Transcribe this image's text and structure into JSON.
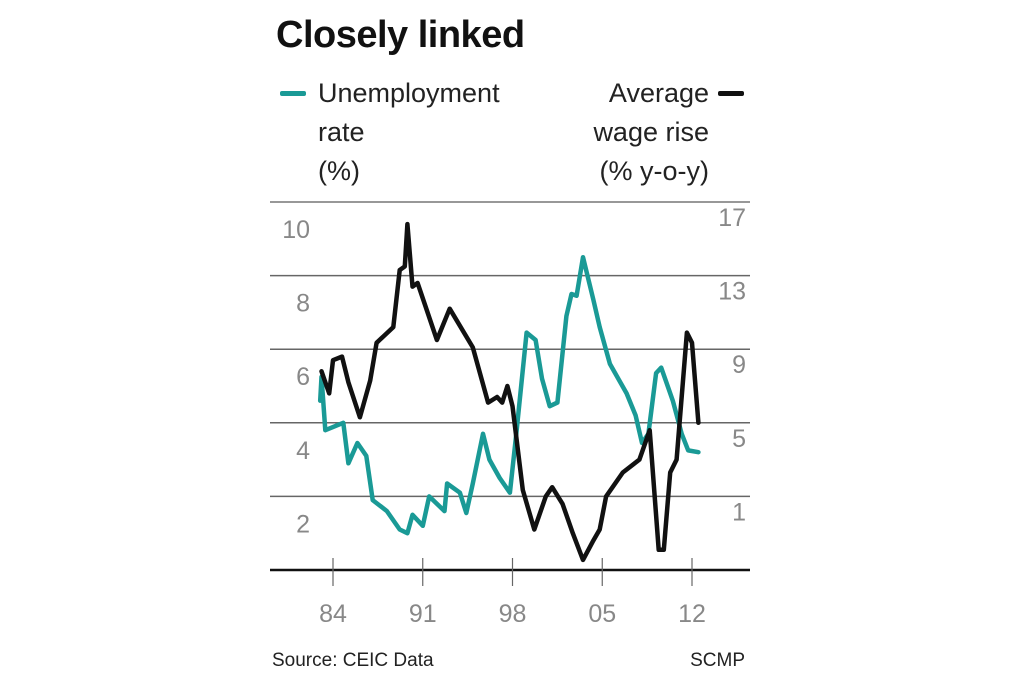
{
  "chart_data": {
    "type": "line",
    "title": "Closely linked",
    "source": "Source: CEIC Data",
    "credit": "SCMP",
    "x_tick_labels": [
      "84",
      "91",
      "98",
      "05",
      "12"
    ],
    "x_ticks": [
      1984,
      1991,
      1998,
      2005,
      2012
    ],
    "xlim": [
      1982.3,
      2015.5
    ],
    "grid": true,
    "y_left": {
      "tick_labels": [
        "10",
        "8",
        "6",
        "4",
        "2"
      ],
      "ticks": [
        10,
        8,
        6,
        4,
        2
      ],
      "ylim": [
        0,
        10
      ]
    },
    "y_right": {
      "tick_labels": [
        "17",
        "13",
        "9",
        "5",
        "1"
      ],
      "ticks": [
        17,
        13,
        9,
        5,
        1
      ],
      "ylim": [
        -3,
        17
      ]
    },
    "series": [
      {
        "name": "Unemployment rate (%)",
        "legend_lines": [
          "Unemployment",
          "rate",
          "(%)"
        ],
        "axis": "left",
        "color": "#1a9a96",
        "x": [
          1983.0,
          1983.1,
          1983.4,
          1984.8,
          1985.2,
          1985.9,
          1986.6,
          1987.1,
          1988.2,
          1989.2,
          1989.8,
          1990.2,
          1991.0,
          1991.5,
          1992.7,
          1992.9,
          1993.9,
          1994.4,
          1994.9,
          1995.7,
          1996.2,
          1997.0,
          1997.8,
          1998.3,
          1999.1,
          1999.8,
          2000.3,
          2000.9,
          2001.5,
          2002.2,
          2002.6,
          2003.0,
          2003.5,
          2004.3,
          2004.8,
          2005.6,
          2006.9,
          2007.6,
          2008.1,
          2008.6,
          2009.2,
          2009.6,
          2010.5,
          2011.2,
          2011.7,
          2012.5
        ],
        "y": [
          4.6,
          5.25,
          3.8,
          4.0,
          2.9,
          3.45,
          3.1,
          1.9,
          1.6,
          1.1,
          1.0,
          1.5,
          1.2,
          2.0,
          1.6,
          2.35,
          2.1,
          1.55,
          2.35,
          3.7,
          3.0,
          2.5,
          2.1,
          3.7,
          6.45,
          6.25,
          5.2,
          4.45,
          4.55,
          6.9,
          7.5,
          7.45,
          8.5,
          7.35,
          6.6,
          5.6,
          4.8,
          4.2,
          3.45,
          3.7,
          5.35,
          5.5,
          4.6,
          3.7,
          3.25,
          3.2
        ]
      },
      {
        "name": "Average wage rise (% y-o-y)",
        "legend_lines": [
          "Average",
          "wage rise",
          "(% y-o-y)"
        ],
        "axis": "right",
        "color": "#111111",
        "x": [
          1983.1,
          1983.7,
          1984.0,
          1984.7,
          1985.2,
          1986.1,
          1986.9,
          1987.4,
          1988.7,
          1989.2,
          1989.6,
          1989.8,
          1990.2,
          1990.6,
          1992.1,
          1993.1,
          1994.9,
          1996.1,
          1996.8,
          1997.2,
          1997.6,
          1998.0,
          1998.8,
          1999.7,
          2000.6,
          2001.1,
          2001.9,
          2002.7,
          2003.5,
          2004.3,
          2004.8,
          2005.3,
          2006.6,
          2007.9,
          2008.7,
          2009.4,
          2009.8,
          2010.3,
          2010.8,
          2011.6,
          2012.0,
          2012.5
        ],
        "y": [
          7.8,
          6.6,
          8.4,
          8.6,
          7.2,
          5.3,
          7.3,
          9.35,
          10.2,
          13.3,
          13.5,
          15.8,
          12.4,
          12.6,
          9.5,
          11.2,
          9.1,
          6.1,
          6.4,
          6.1,
          7.0,
          5.9,
          1.35,
          -0.8,
          1.0,
          1.5,
          0.6,
          -1.0,
          -2.45,
          -1.4,
          -0.8,
          1.0,
          2.3,
          3.0,
          4.6,
          -1.9,
          -1.9,
          2.3,
          3.0,
          9.9,
          9.35,
          5.0
        ]
      }
    ]
  }
}
